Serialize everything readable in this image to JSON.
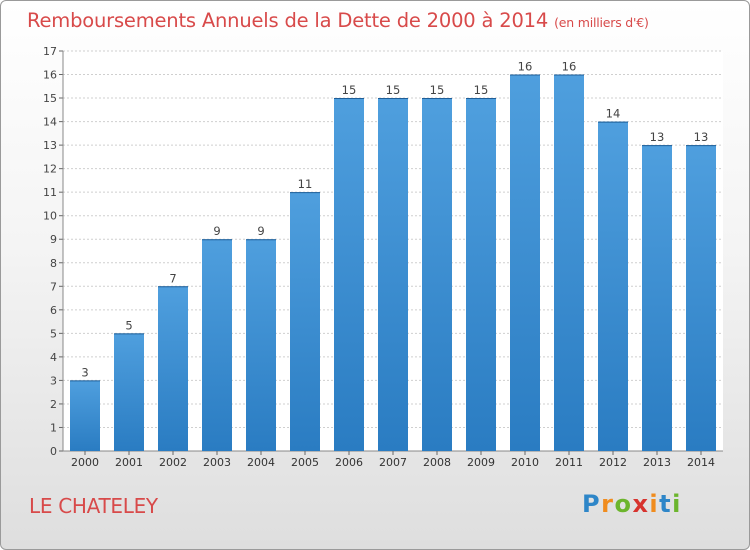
{
  "chart_data": {
    "type": "bar",
    "title": "Remboursements Annuels de la Dette de 2000 à 2014",
    "subtitle": "(en milliers d'€)",
    "categories": [
      "2000",
      "2001",
      "2002",
      "2003",
      "2004",
      "2005",
      "2006",
      "2007",
      "2008",
      "2009",
      "2010",
      "2011",
      "2012",
      "2013",
      "2014"
    ],
    "values": [
      3,
      5,
      7,
      9,
      9,
      11,
      15,
      15,
      15,
      15,
      16,
      16,
      14,
      13,
      13
    ],
    "ylim": [
      0,
      17
    ],
    "yticks": [
      0,
      1,
      2,
      3,
      4,
      5,
      6,
      7,
      8,
      9,
      10,
      11,
      12,
      13,
      14,
      15,
      16,
      17
    ],
    "grid": true,
    "data_labels": true,
    "bar_color": "#4f9fde",
    "bar_color_dark": "#2a7cc2"
  },
  "footer": {
    "location": "LE CHATELEY",
    "brand_letters": [
      "P",
      "r",
      "o",
      "x",
      "i",
      "t",
      "i"
    ],
    "brand_colors": [
      "#2e86c8",
      "#f08c1e",
      "#6cb52d",
      "#d7332e",
      "#f08c1e",
      "#2e86c8",
      "#6cb52d"
    ]
  },
  "colors": {
    "title": "#d84a4a",
    "grid": "#cfcfcf"
  }
}
